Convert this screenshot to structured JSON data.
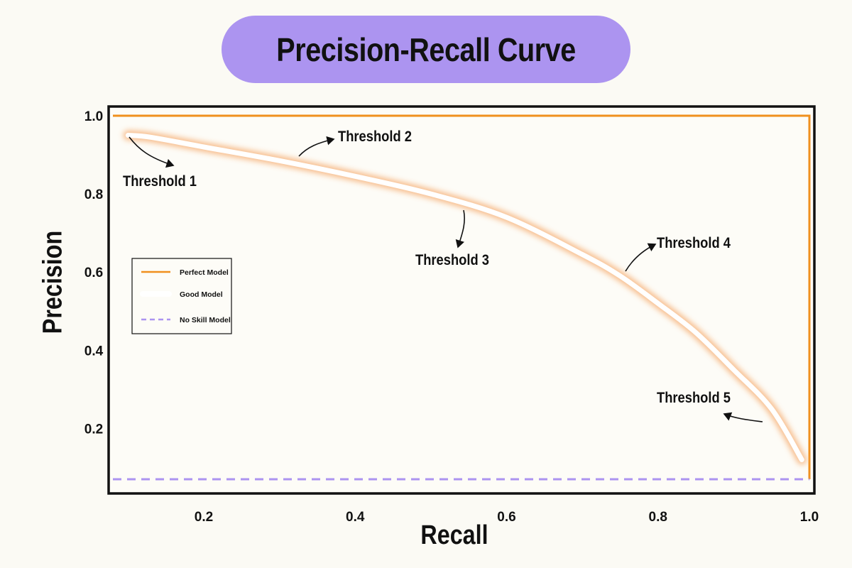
{
  "chart_data": {
    "type": "line",
    "title": "Precision-Recall Curve",
    "xlabel": "Recall",
    "ylabel": "Precision",
    "xlim": [
      0.08,
      1.0
    ],
    "ylim": [
      0.05,
      1.02
    ],
    "x_ticks": [
      "0.2",
      "0.4",
      "0.6",
      "0.8",
      "1.0"
    ],
    "x_tick_values": [
      0.2,
      0.4,
      0.6,
      0.8,
      1.0
    ],
    "y_ticks": [
      "1.0",
      "0.8",
      "0.6",
      "0.4",
      "0.2"
    ],
    "y_tick_values": [
      1.0,
      0.8,
      0.6,
      0.4,
      0.2
    ],
    "grid": false,
    "legend_position": "left",
    "series": [
      {
        "name": "Perfect Model",
        "style": "solid",
        "color": "#f0901e",
        "x": [
          0.08,
          1.0,
          1.0
        ],
        "y": [
          1.0,
          1.0,
          0.07
        ]
      },
      {
        "name": "Good Model",
        "style": "glow",
        "color": "#ffffff",
        "glow_color": "#f6b27a",
        "x": [
          0.1,
          0.13,
          0.2,
          0.3,
          0.4,
          0.5,
          0.6,
          0.7,
          0.75,
          0.8,
          0.85,
          0.9,
          0.95,
          0.99
        ],
        "y": [
          0.95,
          0.945,
          0.92,
          0.885,
          0.845,
          0.8,
          0.74,
          0.645,
          0.59,
          0.52,
          0.445,
          0.35,
          0.25,
          0.12
        ]
      },
      {
        "name": "No Skill Model",
        "style": "dashed",
        "color": "#ac94f0",
        "x": [
          0.08,
          1.0
        ],
        "y": [
          0.07,
          0.07
        ]
      }
    ],
    "annotations": [
      {
        "text": "Threshold 1",
        "x": 0.1,
        "y": 0.95
      },
      {
        "text": "Threshold 2",
        "x": 0.325,
        "y": 0.875
      },
      {
        "text": "Threshold 3",
        "x": 0.545,
        "y": 0.77
      },
      {
        "text": "Threshold 4",
        "x": 0.755,
        "y": 0.58
      },
      {
        "text": "Threshold 5",
        "x": 0.943,
        "y": 0.22
      }
    ]
  }
}
